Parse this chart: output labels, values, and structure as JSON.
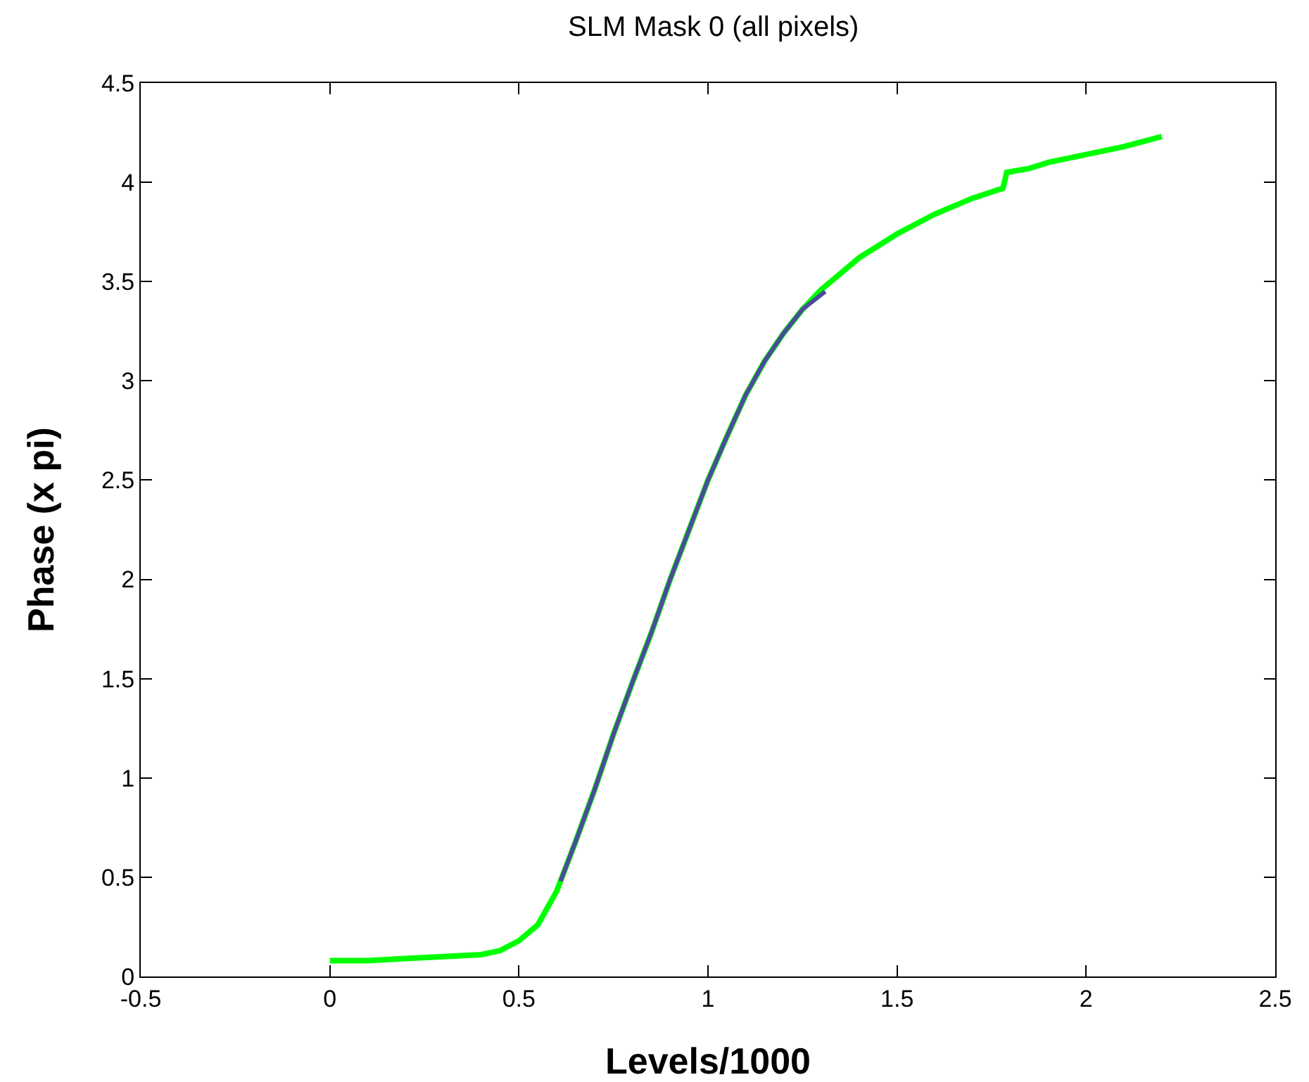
{
  "chart_data": {
    "type": "line",
    "title": "SLM Mask 0 (all pixels)",
    "xlabel": "Levels/1000",
    "ylabel": "Phase (x pi)",
    "xlim": [
      -0.5,
      2.5
    ],
    "xticks": [
      -0.5,
      0,
      0.5,
      1,
      1.5,
      2,
      2.5
    ],
    "ylim": [
      0,
      4.5
    ],
    "yticks": [
      0,
      0.5,
      1,
      1.5,
      2,
      2.5,
      3,
      3.5,
      4,
      4.5
    ],
    "marker": "none",
    "line_style": "solid",
    "series": [
      {
        "color": "#00ff00",
        "x": [
          0,
          0.1,
          0.2,
          0.3,
          0.4,
          0.45,
          0.5,
          0.55,
          0.6,
          0.65,
          0.7,
          0.75,
          0.8,
          0.85,
          0.9,
          0.95,
          1.0,
          1.05,
          1.1,
          1.15,
          1.2,
          1.25,
          1.3,
          1.35,
          1.4,
          1.5,
          1.6,
          1.7,
          1.78,
          1.79,
          1.85,
          1.9,
          2.0,
          2.1,
          2.2
        ],
        "values": [
          0.08,
          0.08,
          0.09,
          0.1,
          0.11,
          0.13,
          0.18,
          0.26,
          0.43,
          0.68,
          0.94,
          1.22,
          1.48,
          1.73,
          2.0,
          2.25,
          2.5,
          2.72,
          2.93,
          3.1,
          3.24,
          3.36,
          3.46,
          3.54,
          3.62,
          3.74,
          3.84,
          3.92,
          3.97,
          4.05,
          4.07,
          4.1,
          4.14,
          4.18,
          4.23
        ]
      },
      {
        "color": "#4b4b9b",
        "x": [
          0.61,
          0.65,
          0.7,
          0.75,
          0.8,
          0.85,
          0.9,
          0.95,
          1.0,
          1.05,
          1.1,
          1.15,
          1.2,
          1.25,
          1.31
        ],
        "values": [
          0.48,
          0.68,
          0.94,
          1.22,
          1.48,
          1.73,
          2.0,
          2.25,
          2.5,
          2.72,
          2.93,
          3.1,
          3.24,
          3.36,
          3.45
        ]
      }
    ]
  }
}
